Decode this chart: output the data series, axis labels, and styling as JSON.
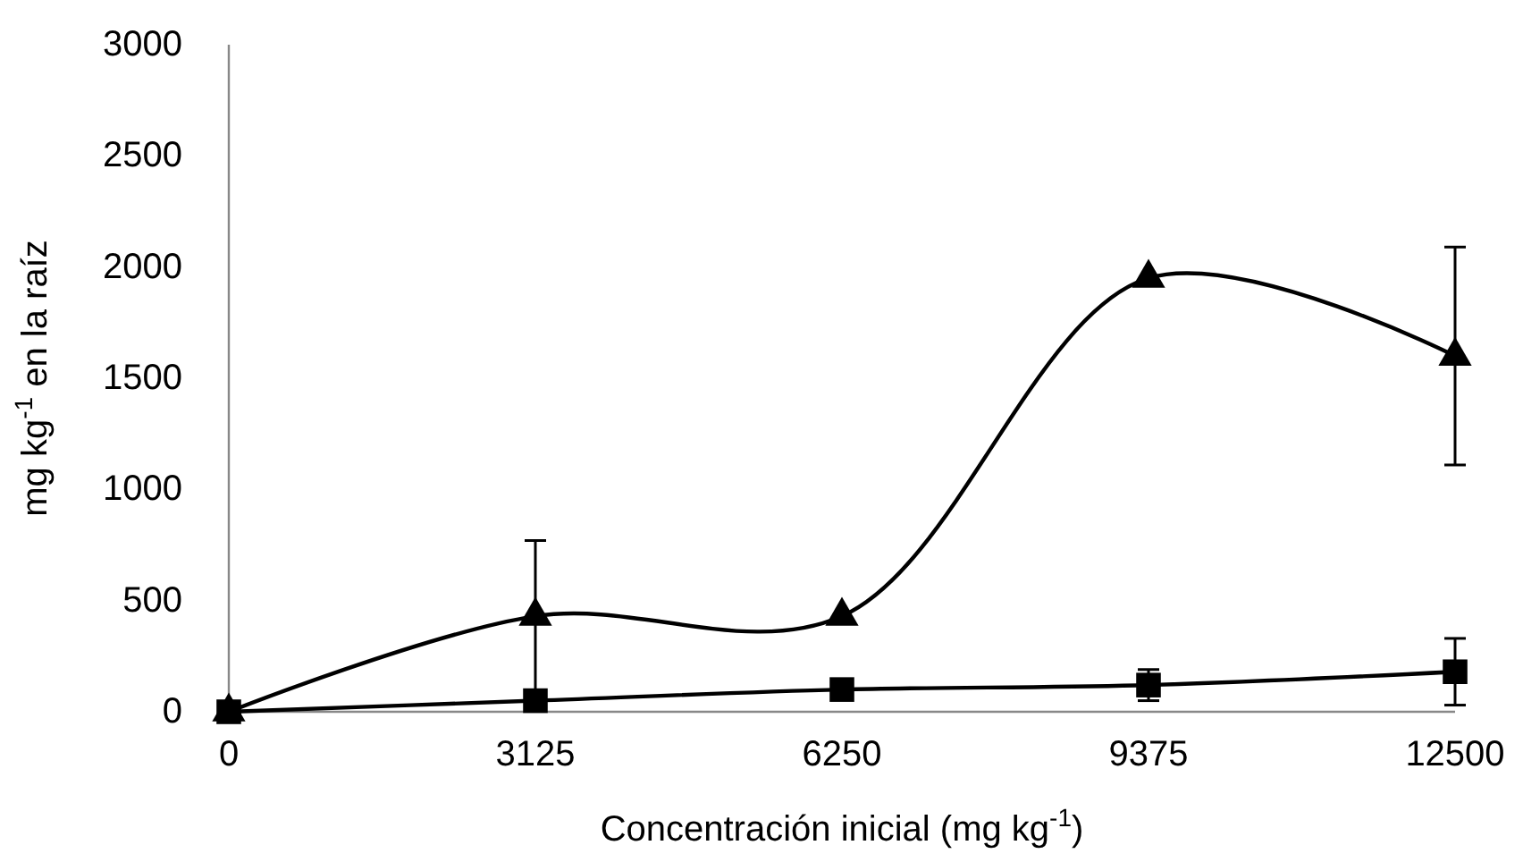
{
  "chart_data": {
    "type": "line",
    "xlabel": "Concentración inicial (mg kg$^{-1}$)",
    "ylabel": "mg kg$^{-1}$ en la raíz",
    "x": [
      0,
      3125,
      6250,
      9375,
      12500
    ],
    "series": [
      {
        "color": "#000000",
        "marker": "square",
        "values": [
          0,
          50,
          100,
          120,
          180
        ],
        "errors": [
          null,
          null,
          null,
          70,
          150
        ]
      },
      {
        "color": "#000000",
        "marker": "triangle",
        "values": [
          0,
          430,
          430,
          1950,
          1600
        ],
        "errors": [
          null,
          340,
          null,
          null,
          490
        ]
      }
    ],
    "xlim": [
      0,
      12500
    ],
    "xticks": [
      0,
      3125,
      6250,
      9375,
      12500
    ],
    "ylim": [
      0,
      3000
    ],
    "yticks": [
      0,
      500,
      1000,
      1500,
      2000,
      2500,
      3000
    ],
    "grid": false,
    "line_style": "solid"
  }
}
